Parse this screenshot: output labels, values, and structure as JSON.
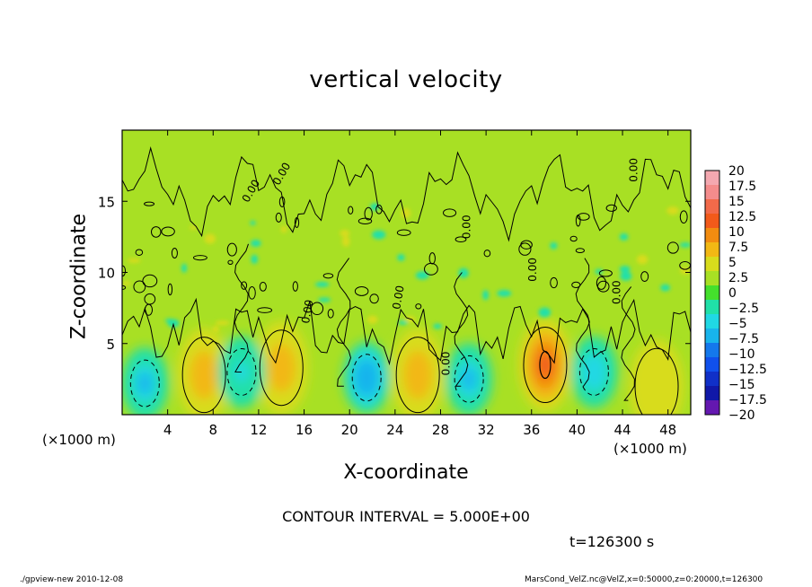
{
  "title": "vertical velocity",
  "contour_interval": "CONTOUR INTERVAL = 5.000E+00",
  "time_label": "t=126300 s",
  "x_unit_left": "(×1000 m)",
  "x_unit_right": "(×1000 m)",
  "footer_left": "./gpview-new   2010-12-08",
  "footer_right": "MarsCond_VelZ.nc@VelZ,x=0:50000,z=0:20000,t=126300",
  "contour_labels": [
    "0.00",
    "0.00",
    "0.00",
    "0.00",
    "0.00",
    "0.00",
    "0.00",
    "0.00",
    "0.00"
  ],
  "chart_data": {
    "type": "heatmap",
    "title": "vertical velocity",
    "xlabel": "X-coordinate",
    "ylabel": "Z-coordinate",
    "xlim": [
      0,
      50
    ],
    "ylim": [
      0,
      20
    ],
    "x_ticks": [
      4,
      8,
      12,
      16,
      20,
      24,
      28,
      32,
      36,
      40,
      44,
      48
    ],
    "y_ticks": [
      5,
      10,
      15
    ],
    "colorbar": {
      "levels": [
        20,
        17.5,
        15,
        12.5,
        10,
        7.5,
        5,
        2.5,
        0,
        -2.5,
        -5,
        -7.5,
        -10,
        -12.5,
        -15,
        -17.5,
        -20
      ],
      "labels": [
        "20",
        "17.5",
        "15",
        "12.5",
        "10",
        "7.5",
        "5",
        "2.5",
        "0",
        "−2.5",
        "−5",
        "−7.5",
        "−10",
        "−12.5",
        "−15",
        "−17.5",
        "−20"
      ],
      "colors": [
        "#f4a8b0",
        "#f48c8c",
        "#f26a4a",
        "#f25a1a",
        "#f28c10",
        "#f2b814",
        "#d8dc1c",
        "#a8e024",
        "#44e02c",
        "#20e0a8",
        "#20d8e4",
        "#18b4ec",
        "#1478ec",
        "#1050ec",
        "#1030c8",
        "#1018a8",
        "#6418b0"
      ]
    },
    "features": [
      {
        "kind": "updraft",
        "x": 7.2,
        "z": 2.8,
        "value": 7.5
      },
      {
        "kind": "updraft",
        "x": 14.0,
        "z": 3.3,
        "value": 7.5
      },
      {
        "kind": "updraft",
        "x": 26.0,
        "z": 2.8,
        "value": 7.5
      },
      {
        "kind": "updraft",
        "x": 37.2,
        "z": 3.5,
        "value": 11
      },
      {
        "kind": "updraft",
        "x": 47.0,
        "z": 2.0,
        "value": 5
      },
      {
        "kind": "downdraft",
        "x": 2.0,
        "z": 2.2,
        "value": -7.5
      },
      {
        "kind": "downdraft",
        "x": 10.5,
        "z": 3.0,
        "value": -5
      },
      {
        "kind": "downdraft",
        "x": 21.5,
        "z": 2.6,
        "value": -9
      },
      {
        "kind": "downdraft",
        "x": 30.5,
        "z": 2.5,
        "value": -8
      },
      {
        "kind": "downdraft",
        "x": 41.5,
        "z": 3.0,
        "value": -7
      }
    ]
  }
}
